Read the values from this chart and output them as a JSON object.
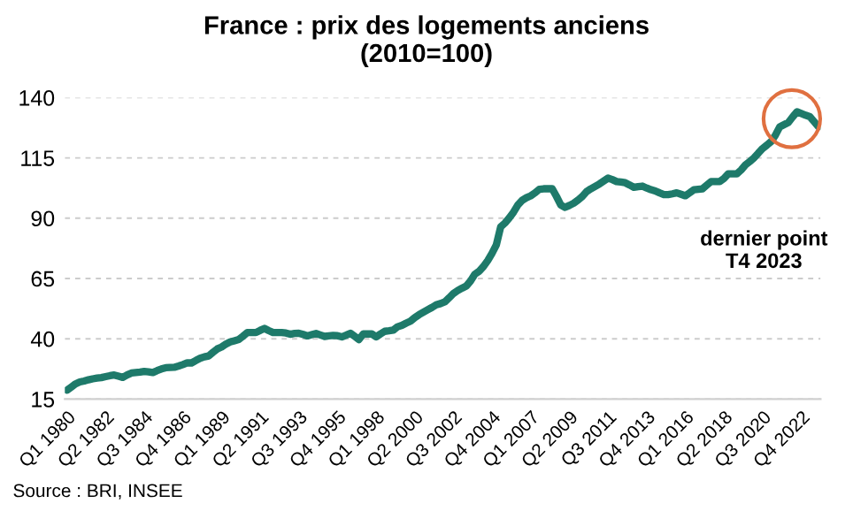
{
  "chart_data": {
    "type": "line",
    "title": "France : prix des logements anciens\n(2010=100)",
    "categories": [
      "Q1 1980",
      null,
      null,
      null,
      null,
      null,
      null,
      null,
      null,
      "Q2 1982",
      null,
      null,
      null,
      null,
      null,
      null,
      null,
      null,
      "Q3 1984",
      null,
      null,
      null,
      null,
      null,
      null,
      null,
      null,
      "Q4 1986",
      null,
      null,
      null,
      null,
      null,
      null,
      null,
      null,
      "Q1 1989",
      null,
      null,
      null,
      null,
      null,
      null,
      null,
      null,
      "Q2 1991",
      null,
      null,
      null,
      null,
      null,
      null,
      null,
      null,
      "Q3 1993",
      null,
      null,
      null,
      null,
      null,
      null,
      null,
      null,
      "Q4 1995",
      null,
      null,
      null,
      null,
      null,
      null,
      null,
      null,
      "Q1 1998",
      null,
      null,
      null,
      null,
      null,
      null,
      null,
      null,
      "Q2 2000",
      null,
      null,
      null,
      null,
      null,
      null,
      null,
      null,
      "Q3 2002",
      null,
      null,
      null,
      null,
      null,
      null,
      null,
      null,
      "Q4 2004",
      null,
      null,
      null,
      null,
      null,
      null,
      null,
      null,
      "Q1 2007",
      null,
      null,
      null,
      null,
      null,
      null,
      null,
      null,
      "Q2 2009",
      null,
      null,
      null,
      null,
      null,
      null,
      null,
      null,
      "Q3 2011",
      null,
      null,
      null,
      null,
      null,
      null,
      null,
      null,
      "Q4 2013",
      null,
      null,
      null,
      null,
      null,
      null,
      null,
      null,
      "Q1 2016",
      null,
      null,
      null,
      null,
      null,
      null,
      null,
      null,
      "Q2 2018",
      null,
      null,
      null,
      null,
      null,
      null,
      null,
      null,
      "Q3 2020",
      null,
      null,
      null,
      null,
      null,
      null,
      null,
      null,
      "Q4 2022",
      null,
      null,
      null,
      null
    ],
    "series": [
      {
        "color": "#1e7a6a",
        "values": [
          18.7,
          20,
          21.3,
          22.1,
          22.5,
          23,
          23.4,
          23.7,
          23.9,
          24.3,
          24.7,
          25,
          24.5,
          24,
          25,
          25.8,
          26,
          26.2,
          26.5,
          26.3,
          26,
          26.8,
          27.5,
          28,
          28.1,
          28.2,
          28.7,
          29.3,
          30,
          30,
          31,
          31.9,
          32.5,
          32.9,
          34.4,
          35.8,
          36.6,
          37.8,
          38.7,
          39.2,
          39.7,
          41.1,
          42.6,
          42.6,
          42.6,
          43.5,
          44.3,
          43.4,
          42.6,
          42.6,
          42.6,
          42.4,
          41.9,
          42.2,
          42.3,
          41.8,
          41.2,
          41.7,
          42.2,
          41.6,
          41,
          41.2,
          41.4,
          41.3,
          40.8,
          41.5,
          42.3,
          41,
          39.7,
          42,
          42,
          42,
          40.8,
          42,
          43.1,
          43.3,
          43.6,
          45,
          45.6,
          46.5,
          47.3,
          48.8,
          50,
          51,
          52,
          53,
          54.1,
          54.6,
          55.3,
          57,
          58.8,
          60,
          61,
          61.9,
          64,
          66.8,
          68,
          70,
          72.5,
          75.5,
          79,
          86.4,
          88,
          90.1,
          92.5,
          95.5,
          97.4,
          98.5,
          99.3,
          100.5,
          102,
          102.2,
          102.2,
          102.2,
          99,
          95.5,
          94.5,
          95.3,
          96.2,
          97.5,
          99,
          101,
          102.2,
          103.2,
          104.2,
          105.4,
          106.6,
          106,
          105.2,
          105,
          104.7,
          103.8,
          102.8,
          103.1,
          103.3,
          102.5,
          101.8,
          101.3,
          100.5,
          99.8,
          99.8,
          100.1,
          100.5,
          99.9,
          99.3,
          100.5,
          101.8,
          102,
          102.2,
          103.7,
          105.2,
          105.2,
          105.2,
          106.5,
          108.4,
          108.4,
          108.4,
          110,
          112.1,
          113.5,
          115,
          117,
          118.9,
          120.3,
          121.8,
          124.5,
          127.9,
          128.8,
          129.7,
          132,
          134.1,
          133.4,
          132.7,
          132.1,
          130,
          127.9
        ]
      }
    ],
    "ylim": [
      15,
      140
    ],
    "yticks": [
      15,
      40,
      65,
      90,
      115,
      140
    ],
    "grid": "y",
    "annotations": [
      "dernier point\nT4 2023",
      "Source : BRI, INSEE"
    ]
  }
}
